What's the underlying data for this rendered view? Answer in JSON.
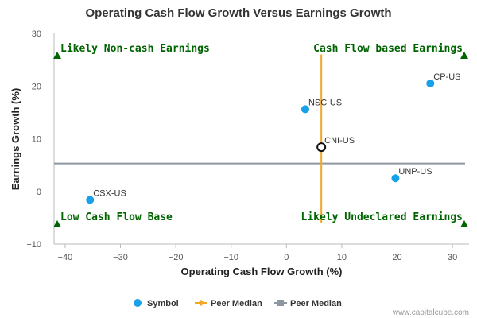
{
  "chart_data": {
    "type": "scatter",
    "title": "Operating Cash Flow Growth Versus Earnings Growth",
    "xlabel": "Operating Cash Flow Growth (%)",
    "ylabel": "Earnings Growth (%)",
    "xlim": [
      -42,
      33
    ],
    "ylim": [
      -10,
      30
    ],
    "xticks": [
      -40,
      -30,
      -20,
      -10,
      0,
      10,
      20,
      30
    ],
    "yticks": [
      -10,
      0,
      10,
      20,
      30
    ],
    "points": [
      {
        "label": "CP-US",
        "x": 26.0,
        "y": 20.5
      },
      {
        "label": "NSC-US",
        "x": 3.4,
        "y": 15.6
      },
      {
        "label": "CNI-US",
        "x": 6.3,
        "y": 8.4,
        "highlight": true
      },
      {
        "label": "UNP-US",
        "x": 19.7,
        "y": 2.5
      },
      {
        "label": "CSX-US",
        "x": -35.5,
        "y": -1.6
      }
    ],
    "peer_median_x": 6.3,
    "peer_median_y": 5.3,
    "median_x_line_range": [
      -6,
      26
    ],
    "quadrant_labels": {
      "top_left": "Likely Non-cash Earnings",
      "top_right": "Cash Flow based Earnings",
      "bottom_left": "Low Cash Flow Base",
      "bottom_right": "Likely Undeclared Earnings"
    },
    "legend": [
      {
        "label": "Symbol",
        "type": "dot",
        "color": "#1aa0e8"
      },
      {
        "label": "Peer Median",
        "type": "line-diamond",
        "color": "#f5a623"
      },
      {
        "label": "Peer Median",
        "type": "line-square",
        "color": "#8e96a0"
      }
    ],
    "legend_position": "bottom",
    "grid": false,
    "credit": "www.capitalcube.com",
    "colors": {
      "point": "#1aa0e8",
      "median_vertical": "#f5a623",
      "median_horizontal": "#8e96a0",
      "quadrant_text": "#006400",
      "axis": "#bbbbbb"
    }
  }
}
